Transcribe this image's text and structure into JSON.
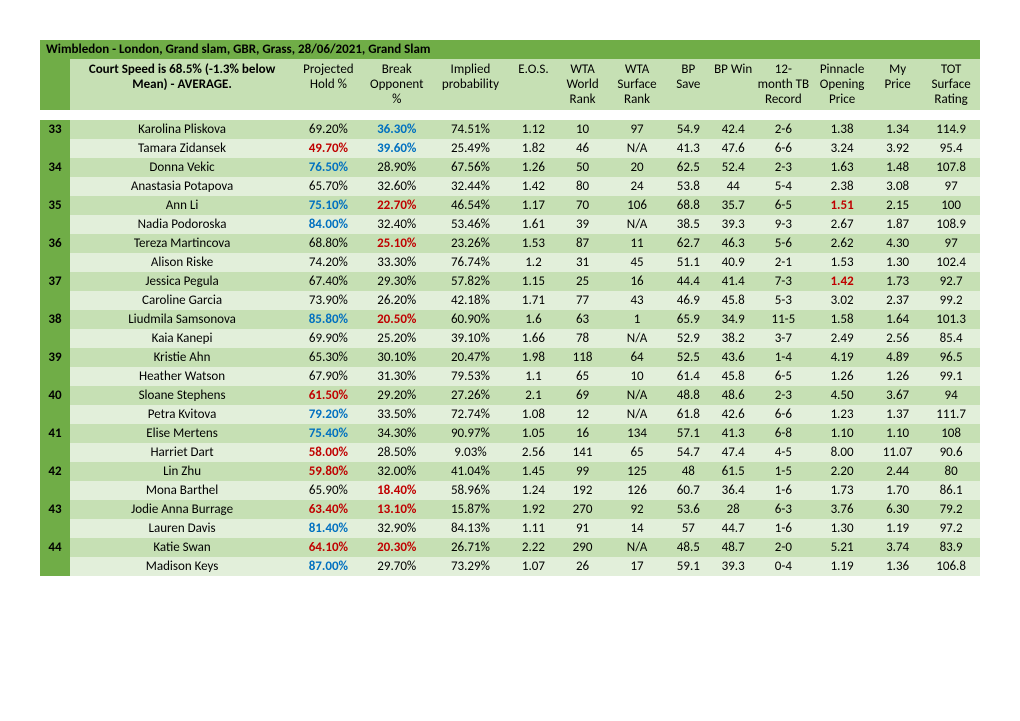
{
  "colors": {
    "dark_green": "#70ad47",
    "light_green_a": "#c6e0b4",
    "light_green_b": "#e2efda",
    "red": "#c00000",
    "blue": "#0070c0"
  },
  "title": "Wimbledon - London, Grand slam, GBR, Grass, 28/06/2021, Grand Slam",
  "subtitle": "Court Speed is 68.5% (-1.3% below Mean) - AVERAGE.",
  "columns": [
    "Projected Hold %",
    "Break Opponent %",
    "Implied probability",
    "E.O.S.",
    "WTA World Rank",
    "WTA Surface Rank",
    "BP Save",
    "BP Win",
    "12-month TB Record",
    "Pinnacle Opening Price",
    "My Price",
    "TOT Surface Rating"
  ],
  "matches": [
    {
      "num": "33",
      "p1": {
        "name": "Karolina Pliskova",
        "hold": "69.20%",
        "break": "36.30%",
        "imp": "74.51%",
        "eos": "1.12",
        "wr": "10",
        "sr": "97",
        "bps": "54.9",
        "bpw": "42.4",
        "tb": "2-6",
        "pop": "1.38",
        "myp": "1.34",
        "tot": "114.9",
        "hold_c": null,
        "break_c": "blue",
        "pop_c": null
      },
      "p2": {
        "name": "Tamara Zidansek",
        "hold": "49.70%",
        "break": "39.60%",
        "imp": "25.49%",
        "eos": "1.82",
        "wr": "46",
        "sr": "N/A",
        "bps": "41.3",
        "bpw": "47.6",
        "tb": "6-6",
        "pop": "3.24",
        "myp": "3.92",
        "tot": "95.4",
        "hold_c": "red",
        "break_c": "blue",
        "pop_c": null
      }
    },
    {
      "num": "34",
      "p1": {
        "name": "Donna Vekic",
        "hold": "76.50%",
        "break": "28.90%",
        "imp": "67.56%",
        "eos": "1.26",
        "wr": "50",
        "sr": "20",
        "bps": "62.5",
        "bpw": "52.4",
        "tb": "2-3",
        "pop": "1.63",
        "myp": "1.48",
        "tot": "107.8",
        "hold_c": "blue",
        "break_c": null,
        "pop_c": null
      },
      "p2": {
        "name": "Anastasia Potapova",
        "hold": "65.70%",
        "break": "32.60%",
        "imp": "32.44%",
        "eos": "1.42",
        "wr": "80",
        "sr": "24",
        "bps": "53.8",
        "bpw": "44",
        "tb": "5-4",
        "pop": "2.38",
        "myp": "3.08",
        "tot": "97",
        "hold_c": null,
        "break_c": null,
        "pop_c": null
      }
    },
    {
      "num": "35",
      "p1": {
        "name": "Ann Li",
        "hold": "75.10%",
        "break": "22.70%",
        "imp": "46.54%",
        "eos": "1.17",
        "wr": "70",
        "sr": "106",
        "bps": "68.8",
        "bpw": "35.7",
        "tb": "6-5",
        "pop": "1.51",
        "myp": "2.15",
        "tot": "100",
        "hold_c": "blue",
        "break_c": "red",
        "pop_c": "red"
      },
      "p2": {
        "name": "Nadia Podoroska",
        "hold": "84.00%",
        "break": "32.40%",
        "imp": "53.46%",
        "eos": "1.61",
        "wr": "39",
        "sr": "N/A",
        "bps": "38.5",
        "bpw": "39.3",
        "tb": "9-3",
        "pop": "2.67",
        "myp": "1.87",
        "tot": "108.9",
        "hold_c": "blue",
        "break_c": null,
        "pop_c": null
      }
    },
    {
      "num": "36",
      "p1": {
        "name": "Tereza Martincova",
        "hold": "68.80%",
        "break": "25.10%",
        "imp": "23.26%",
        "eos": "1.53",
        "wr": "87",
        "sr": "11",
        "bps": "62.7",
        "bpw": "46.3",
        "tb": "5-6",
        "pop": "2.62",
        "myp": "4.30",
        "tot": "97",
        "hold_c": null,
        "break_c": "red",
        "pop_c": null
      },
      "p2": {
        "name": "Alison Riske",
        "hold": "74.20%",
        "break": "33.30%",
        "imp": "76.74%",
        "eos": "1.2",
        "wr": "31",
        "sr": "45",
        "bps": "51.1",
        "bpw": "40.9",
        "tb": "2-1",
        "pop": "1.53",
        "myp": "1.30",
        "tot": "102.4",
        "hold_c": null,
        "break_c": null,
        "pop_c": null
      }
    },
    {
      "num": "37",
      "p1": {
        "name": "Jessica Pegula",
        "hold": "67.40%",
        "break": "29.30%",
        "imp": "57.82%",
        "eos": "1.15",
        "wr": "25",
        "sr": "16",
        "bps": "44.4",
        "bpw": "41.4",
        "tb": "7-3",
        "pop": "1.42",
        "myp": "1.73",
        "tot": "92.7",
        "hold_c": null,
        "break_c": null,
        "pop_c": "red"
      },
      "p2": {
        "name": "Caroline Garcia",
        "hold": "73.90%",
        "break": "26.20%",
        "imp": "42.18%",
        "eos": "1.71",
        "wr": "77",
        "sr": "43",
        "bps": "46.9",
        "bpw": "45.8",
        "tb": "5-3",
        "pop": "3.02",
        "myp": "2.37",
        "tot": "99.2",
        "hold_c": null,
        "break_c": null,
        "pop_c": null
      }
    },
    {
      "num": "38",
      "p1": {
        "name": "Liudmila Samsonova",
        "hold": "85.80%",
        "break": "20.50%",
        "imp": "60.90%",
        "eos": "1.6",
        "wr": "63",
        "sr": "1",
        "bps": "65.9",
        "bpw": "34.9",
        "tb": "11-5",
        "pop": "1.58",
        "myp": "1.64",
        "tot": "101.3",
        "hold_c": "blue",
        "break_c": "red",
        "pop_c": null
      },
      "p2": {
        "name": "Kaia Kanepi",
        "hold": "69.90%",
        "break": "25.20%",
        "imp": "39.10%",
        "eos": "1.66",
        "wr": "78",
        "sr": "N/A",
        "bps": "52.9",
        "bpw": "38.2",
        "tb": "3-7",
        "pop": "2.49",
        "myp": "2.56",
        "tot": "85.4",
        "hold_c": null,
        "break_c": null,
        "pop_c": null
      }
    },
    {
      "num": "39",
      "p1": {
        "name": "Kristie Ahn",
        "hold": "65.30%",
        "break": "30.10%",
        "imp": "20.47%",
        "eos": "1.98",
        "wr": "118",
        "sr": "64",
        "bps": "52.5",
        "bpw": "43.6",
        "tb": "1-4",
        "pop": "4.19",
        "myp": "4.89",
        "tot": "96.5",
        "hold_c": null,
        "break_c": null,
        "pop_c": null
      },
      "p2": {
        "name": "Heather Watson",
        "hold": "67.90%",
        "break": "31.30%",
        "imp": "79.53%",
        "eos": "1.1",
        "wr": "65",
        "sr": "10",
        "bps": "61.4",
        "bpw": "45.8",
        "tb": "6-5",
        "pop": "1.26",
        "myp": "1.26",
        "tot": "99.1",
        "hold_c": null,
        "break_c": null,
        "pop_c": null
      }
    },
    {
      "num": "40",
      "p1": {
        "name": "Sloane Stephens",
        "hold": "61.50%",
        "break": "29.20%",
        "imp": "27.26%",
        "eos": "2.1",
        "wr": "69",
        "sr": "N/A",
        "bps": "48.8",
        "bpw": "48.6",
        "tb": "2-3",
        "pop": "4.50",
        "myp": "3.67",
        "tot": "94",
        "hold_c": "red",
        "break_c": null,
        "pop_c": null
      },
      "p2": {
        "name": "Petra Kvitova",
        "hold": "79.20%",
        "break": "33.50%",
        "imp": "72.74%",
        "eos": "1.08",
        "wr": "12",
        "sr": "N/A",
        "bps": "61.8",
        "bpw": "42.6",
        "tb": "6-6",
        "pop": "1.23",
        "myp": "1.37",
        "tot": "111.7",
        "hold_c": "blue",
        "break_c": null,
        "pop_c": null
      }
    },
    {
      "num": "41",
      "p1": {
        "name": "Elise Mertens",
        "hold": "75.40%",
        "break": "34.30%",
        "imp": "90.97%",
        "eos": "1.05",
        "wr": "16",
        "sr": "134",
        "bps": "57.1",
        "bpw": "41.3",
        "tb": "6-8",
        "pop": "1.10",
        "myp": "1.10",
        "tot": "108",
        "hold_c": "blue",
        "break_c": null,
        "pop_c": null
      },
      "p2": {
        "name": "Harriet Dart",
        "hold": "58.00%",
        "break": "28.50%",
        "imp": "9.03%",
        "eos": "2.56",
        "wr": "141",
        "sr": "65",
        "bps": "54.7",
        "bpw": "47.4",
        "tb": "4-5",
        "pop": "8.00",
        "myp": "11.07",
        "tot": "90.6",
        "hold_c": "red",
        "break_c": null,
        "pop_c": null
      }
    },
    {
      "num": "42",
      "p1": {
        "name": "Lin Zhu",
        "hold": "59.80%",
        "break": "32.00%",
        "imp": "41.04%",
        "eos": "1.45",
        "wr": "99",
        "sr": "125",
        "bps": "48",
        "bpw": "61.5",
        "tb": "1-5",
        "pop": "2.20",
        "myp": "2.44",
        "tot": "80",
        "hold_c": "red",
        "break_c": null,
        "pop_c": null
      },
      "p2": {
        "name": "Mona Barthel",
        "hold": "65.90%",
        "break": "18.40%",
        "imp": "58.96%",
        "eos": "1.24",
        "wr": "192",
        "sr": "126",
        "bps": "60.7",
        "bpw": "36.4",
        "tb": "1-6",
        "pop": "1.73",
        "myp": "1.70",
        "tot": "86.1",
        "hold_c": null,
        "break_c": "red",
        "pop_c": null
      }
    },
    {
      "num": "43",
      "p1": {
        "name": "Jodie Anna Burrage",
        "hold": "63.40%",
        "break": "13.10%",
        "imp": "15.87%",
        "eos": "1.92",
        "wr": "270",
        "sr": "92",
        "bps": "53.6",
        "bpw": "28",
        "tb": "6-3",
        "pop": "3.76",
        "myp": "6.30",
        "tot": "79.2",
        "hold_c": "red",
        "break_c": "red",
        "pop_c": null
      },
      "p2": {
        "name": "Lauren Davis",
        "hold": "81.40%",
        "break": "32.90%",
        "imp": "84.13%",
        "eos": "1.11",
        "wr": "91",
        "sr": "14",
        "bps": "57",
        "bpw": "44.7",
        "tb": "1-6",
        "pop": "1.30",
        "myp": "1.19",
        "tot": "97.2",
        "hold_c": "blue",
        "break_c": null,
        "pop_c": null
      }
    },
    {
      "num": "44",
      "p1": {
        "name": "Katie Swan",
        "hold": "64.10%",
        "break": "20.30%",
        "imp": "26.71%",
        "eos": "2.22",
        "wr": "290",
        "sr": "N/A",
        "bps": "48.5",
        "bpw": "48.7",
        "tb": "2-0",
        "pop": "5.21",
        "myp": "3.74",
        "tot": "83.9",
        "hold_c": "red",
        "break_c": "red",
        "pop_c": null
      },
      "p2": {
        "name": "Madison Keys",
        "hold": "87.00%",
        "break": "29.70%",
        "imp": "73.29%",
        "eos": "1.07",
        "wr": "26",
        "sr": "17",
        "bps": "59.1",
        "bpw": "39.3",
        "tb": "0-4",
        "pop": "1.19",
        "myp": "1.36",
        "tot": "106.8",
        "hold_c": "blue",
        "break_c": null,
        "pop_c": null
      }
    }
  ]
}
